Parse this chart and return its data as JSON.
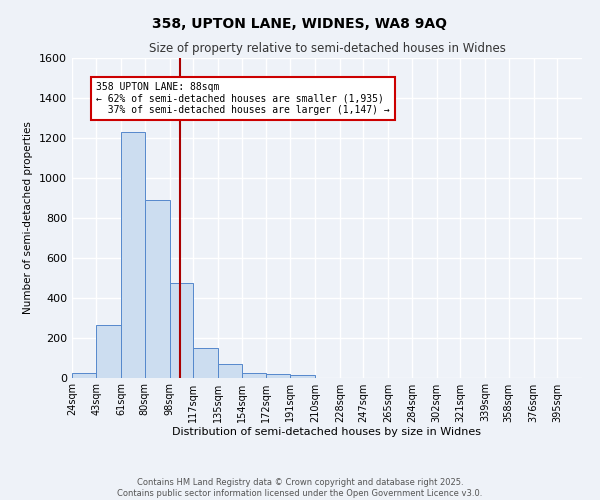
{
  "title": "358, UPTON LANE, WIDNES, WA8 9AQ",
  "subtitle": "Size of property relative to semi-detached houses in Widnes",
  "xlabel": "Distribution of semi-detached houses by size in Widnes",
  "ylabel": "Number of semi-detached properties",
  "bar_labels": [
    "24sqm",
    "43sqm",
    "61sqm",
    "80sqm",
    "98sqm",
    "117sqm",
    "135sqm",
    "154sqm",
    "172sqm",
    "191sqm",
    "210sqm",
    "228sqm",
    "247sqm",
    "265sqm",
    "284sqm",
    "302sqm",
    "321sqm",
    "339sqm",
    "358sqm",
    "376sqm",
    "395sqm"
  ],
  "bar_values": [
    25,
    265,
    1230,
    890,
    475,
    150,
    70,
    25,
    20,
    15,
    0,
    0,
    0,
    0,
    0,
    0,
    0,
    0,
    0,
    0,
    0
  ],
  "bar_color": "#ccddf0",
  "bar_edge_color": "#5588cc",
  "bin_edges": [
    5.5,
    24,
    43,
    61,
    80,
    98,
    117,
    135,
    154,
    172,
    191,
    210,
    228,
    247,
    265,
    284,
    302,
    321,
    339,
    358,
    376,
    395
  ],
  "annotation_text": "358 UPTON LANE: 88sqm\n← 62% of semi-detached houses are smaller (1,935)\n  37% of semi-detached houses are larger (1,147) →",
  "annotation_box_color": "#ffffff",
  "annotation_box_edge": "#cc0000",
  "vline_color": "#aa0000",
  "vline_x": 88,
  "ylim": [
    0,
    1600
  ],
  "yticks": [
    0,
    200,
    400,
    600,
    800,
    1000,
    1200,
    1400,
    1600
  ],
  "footer_line1": "Contains HM Land Registry data © Crown copyright and database right 2025.",
  "footer_line2": "Contains public sector information licensed under the Open Government Licence v3.0.",
  "bg_color": "#eef2f8",
  "grid_color": "#ffffff"
}
